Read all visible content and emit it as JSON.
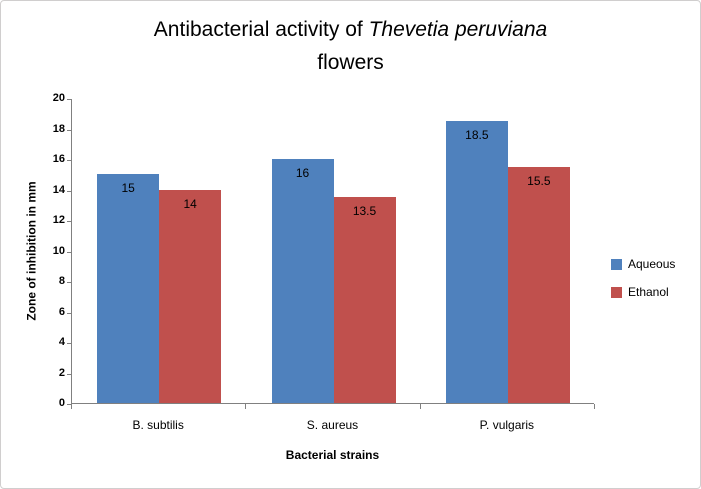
{
  "title": {
    "prefix": "Antibacterial activity of ",
    "species": "Thevetia peruviana",
    "line2": "flowers"
  },
  "chart_data": {
    "type": "bar",
    "title": "Antibacterial activity of Thevetia peruviana flowers",
    "categories": [
      "B. subtilis",
      "S. aureus",
      "P. vulgaris"
    ],
    "series": [
      {
        "name": "Aqueous",
        "color": "#4F81BD",
        "values": [
          15,
          16,
          18.5
        ]
      },
      {
        "name": "Ethanol",
        "color": "#C0504D",
        "values": [
          14,
          13.5,
          15.5
        ]
      }
    ],
    "xlabel": "Bacterial strains",
    "ylabel": "Zone of inhibition in mm",
    "ylim": [
      0,
      20
    ],
    "ytick_step": 2,
    "grid": false,
    "data_labels": true,
    "legend_position": "right"
  }
}
